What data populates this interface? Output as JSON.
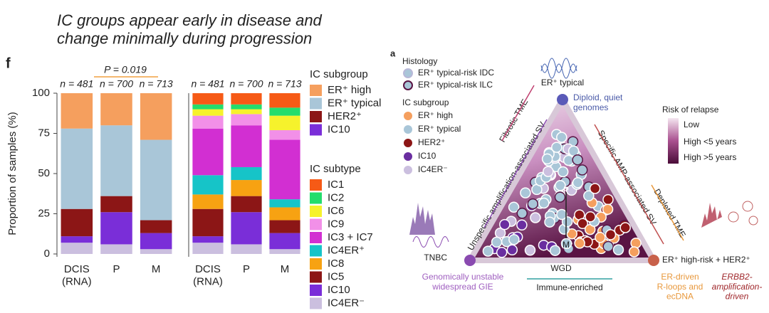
{
  "title": "IC groups appear early in disease and\nchange minimally during progression",
  "chart_data": [
    {
      "type": "bar",
      "stacked": true,
      "panel": "f",
      "ylabel": "Proportion of samples (%)",
      "categories": [
        "DCIS\n(RNA)",
        "P",
        "M"
      ],
      "ylim": [
        0,
        100
      ],
      "yticks": [
        0,
        25,
        50,
        75,
        100
      ],
      "annotations": [
        "n = 481",
        "n = 700",
        "n = 713"
      ],
      "comparison": "P = 0.019",
      "legend_title": "IC subgroup",
      "series": [
        {
          "color": "#cbbfdf",
          "values": [
            7,
            6,
            3
          ]
        },
        {
          "name": "IC10",
          "color": "#7a2ed8",
          "values": [
            4,
            20,
            10
          ]
        },
        {
          "name": "HER2⁺",
          "color": "#8c1616",
          "values": [
            17,
            10,
            8
          ]
        },
        {
          "name": "ER⁺ typical",
          "color": "#a9c6d8",
          "values": [
            50,
            44,
            50
          ]
        },
        {
          "name": "ER⁺ high",
          "color": "#f59f5e",
          "values": [
            22,
            20,
            29
          ]
        }
      ]
    },
    {
      "type": "bar",
      "stacked": true,
      "categories": [
        "DCIS\n(RNA)",
        "P",
        "M"
      ],
      "ylim": [
        0,
        100
      ],
      "annotations": [
        "n = 481",
        "n = 700",
        "n = 713"
      ],
      "legend_title": "IC subtype",
      "series": [
        {
          "name": "IC4ER⁻",
          "color": "#cbbfdf",
          "values": [
            7,
            6,
            3
          ]
        },
        {
          "name": "IC10",
          "color": "#7a2ed8",
          "values": [
            4,
            20,
            10
          ]
        },
        {
          "name": "IC5",
          "color": "#8c1616",
          "values": [
            17,
            10,
            8
          ]
        },
        {
          "name": "IC8",
          "color": "#f7a212",
          "values": [
            9,
            10,
            8
          ]
        },
        {
          "name": "IC4ER⁺",
          "color": "#16c4c8",
          "values": [
            12,
            8,
            5
          ]
        },
        {
          "name": "IC3 + IC7",
          "color": "#d22fd2",
          "values": [
            29,
            26,
            37
          ]
        },
        {
          "name": "IC9",
          "color": "#f290e8",
          "values": [
            8,
            7,
            6
          ]
        },
        {
          "name": "IC6",
          "color": "#f6f22c",
          "values": [
            4,
            3,
            9
          ]
        },
        {
          "name": "IC2",
          "color": "#24dd6c",
          "values": [
            3,
            3,
            5
          ]
        },
        {
          "name": "IC1",
          "color": "#f65a16",
          "values": [
            7,
            7,
            9
          ]
        }
      ]
    }
  ],
  "diagram": {
    "panel": "a",
    "histology_title": "Histology",
    "histology": [
      "ER⁺ typical-risk IDC",
      "ER⁺ typical-risk ILC"
    ],
    "subgroup_title": "IC subgroup",
    "subgroups": [
      "ER⁺ high",
      "ER⁺ typical",
      "HER2⁺",
      "IC10",
      "IC4ER⁻"
    ],
    "top": {
      "label": "ER⁺ typical",
      "note": "Diploid, quiet\ngenomes"
    },
    "left": {
      "label": "TNBC",
      "note": "Genomically unstable\nwidespread GIE"
    },
    "right": {
      "label": "ER⁺ high-risk + HER2⁺",
      "note": "ER-driven\nR-loops and\necDNA",
      "note2": "ERBB2-\namplification-\ndriven"
    },
    "edges": [
      "Fibrotic TME",
      "Unspecific amplification-associated SV",
      "Specific AMP-associated SV",
      "Depleted TME",
      "WGD",
      "Immune-enriched"
    ],
    "center": [
      "P",
      "M"
    ],
    "risk_title": "Risk of relapse",
    "risk": [
      "Low",
      "High <5 years",
      "High >5 years"
    ]
  }
}
